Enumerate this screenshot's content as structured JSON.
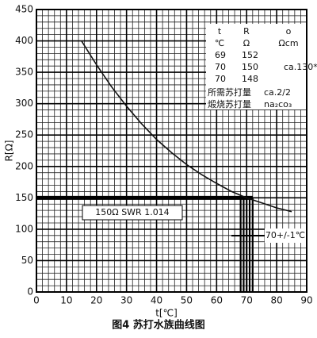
{
  "chart_data": {
    "type": "line",
    "caption": "图4    苏打水族曲线图",
    "x_label": "t[℃]",
    "y_label": "R[Ω]",
    "x": [
      15,
      20,
      25,
      30,
      35,
      40,
      45,
      50,
      55,
      60,
      65,
      70,
      75,
      80,
      85
    ],
    "series": [
      {
        "name": "R",
        "color": "#111111",
        "values": [
          400,
          362,
          327,
          296,
          268,
          243,
          222,
          203,
          187,
          173,
          160,
          150,
          142,
          134,
          128
        ]
      }
    ],
    "xlim": [
      0,
      90
    ],
    "ylim": [
      0,
      450
    ],
    "xticks": [
      0,
      10,
      20,
      30,
      40,
      50,
      60,
      70,
      80,
      90
    ],
    "yticks": [
      0,
      50,
      100,
      150,
      200,
      250,
      300,
      350,
      400,
      450
    ],
    "grid": true,
    "minor_grid_step": {
      "x": 2,
      "y": 10
    },
    "reference_hline": 150,
    "reference_vlines": [
      68,
      69,
      70,
      71,
      72
    ],
    "annotations": [
      "150Ω  SWR 1.014",
      "70+/-1℃"
    ],
    "inset": {
      "rows": [
        [
          "t",
          "R",
          "o"
        ],
        [
          "℃",
          "Ω",
          "Ωcm"
        ],
        [
          "69",
          "152",
          ""
        ],
        [
          "70",
          "150",
          "ca.130*"
        ],
        [
          "70",
          "148",
          ""
        ]
      ],
      "notes": [
        [
          "所需苏打量",
          "ca.2/2"
        ],
        [
          "煅烧苏打量",
          "na₂co₃"
        ]
      ]
    }
  }
}
